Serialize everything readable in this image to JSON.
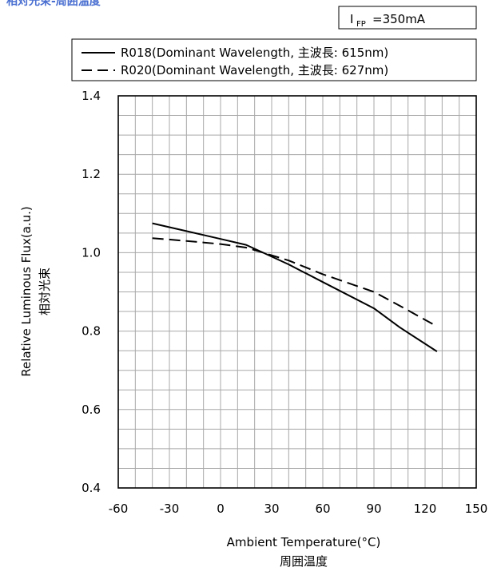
{
  "header": {
    "title": "相対光束-周囲温度"
  },
  "condition": {
    "symbol": "I",
    "subscript": "FP",
    "value": "=350mA"
  },
  "colors": {
    "line": "#000000",
    "grid": "#a8a8a8",
    "header": "#4a6fd1"
  },
  "chart_data": {
    "type": "line",
    "xlabel": "Ambient Temperature(°C)",
    "xlabel_jp": "周囲温度",
    "ylabel": "Relative Luminous Flux(a.u.)",
    "ylabel_jp": "相対光束",
    "xlim": [
      -60,
      150
    ],
    "ylim": [
      0.4,
      1.4
    ],
    "x_ticks": [
      -60,
      -30,
      0,
      30,
      60,
      90,
      120,
      150
    ],
    "x_tick_labels": [
      "-60",
      "-30",
      "0",
      "30",
      "60",
      "90",
      "120",
      "150"
    ],
    "y_ticks": [
      0.4,
      0.6,
      0.8,
      1.0,
      1.2,
      1.4
    ],
    "y_tick_labels": [
      "0.4",
      "0.6",
      "0.8",
      "1.0",
      "1.2",
      "1.4"
    ],
    "x_grid_step": 10,
    "y_grid_step": 0.05,
    "grid": true,
    "legend_position": "top",
    "series": [
      {
        "name": "R018(Dominant Wavelength, 主波長: 615nm)",
        "style": "solid",
        "x": [
          -40,
          -20,
          0,
          15,
          25,
          40,
          60,
          90,
          105,
          127
        ],
        "y": [
          1.075,
          1.055,
          1.035,
          1.02,
          1.0,
          0.97,
          0.925,
          0.858,
          0.81,
          0.748
        ]
      },
      {
        "name": "R020(Dominant Wavelength, 主波長: 627nm)",
        "style": "dashed",
        "x": [
          -40,
          -20,
          0,
          15,
          25,
          40,
          60,
          90,
          105,
          127
        ],
        "y": [
          1.037,
          1.03,
          1.022,
          1.013,
          1.0,
          0.98,
          0.945,
          0.9,
          0.865,
          0.812
        ]
      }
    ]
  }
}
